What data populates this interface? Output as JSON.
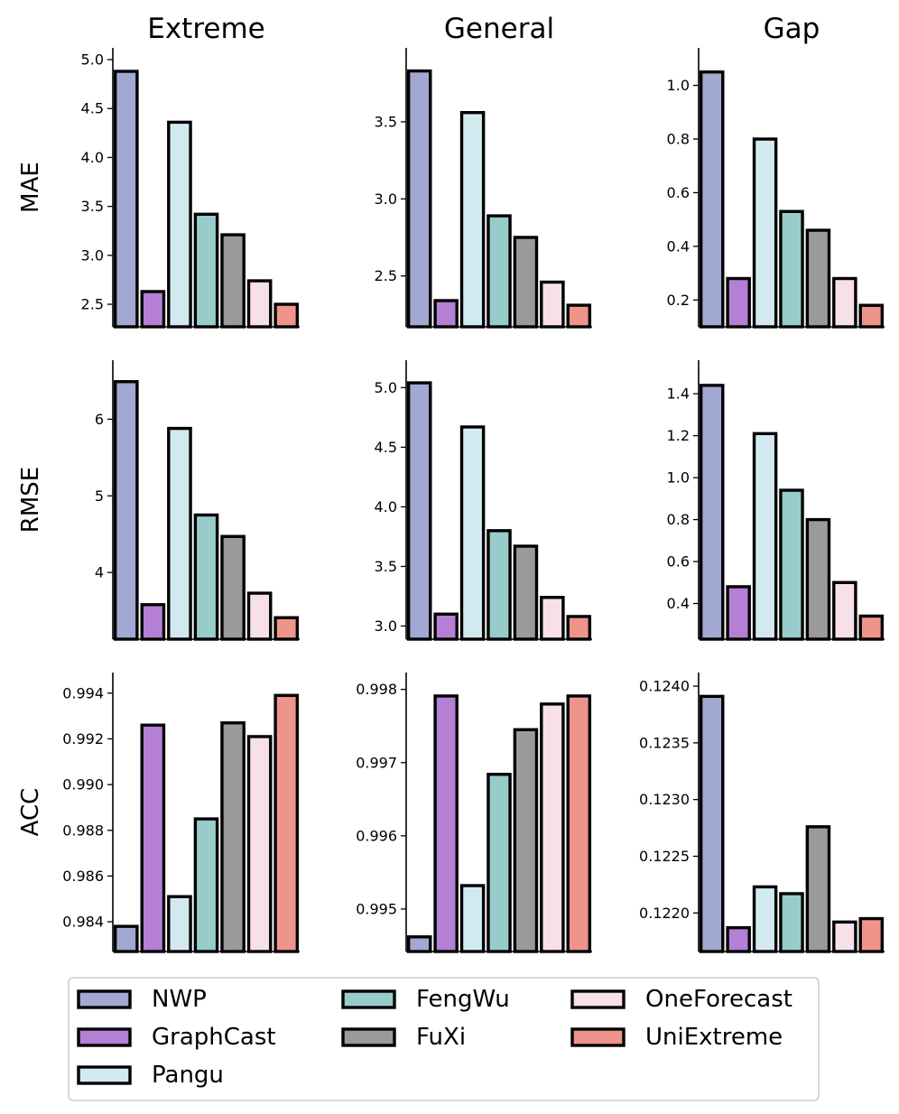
{
  "colors": {
    "NWP": "#a1a9d2",
    "GraphCast": "#b47fd4",
    "Pangu": "#d3e9f0",
    "FengWu": "#98cccb",
    "FuXi": "#9a9a9a",
    "OneForecast": "#f8e0ea",
    "UniExtreme": "#ef948a"
  },
  "legend": {
    "items": [
      "NWP",
      "GraphCast",
      "Pangu",
      "FengWu",
      "FuXi",
      "OneForecast",
      "UniExtreme"
    ]
  },
  "chart_data": [
    {
      "type": "bar",
      "row": "MAE",
      "col": "Extreme",
      "title": "Extreme",
      "ylabel": "MAE",
      "categories": [
        "NWP",
        "GraphCast",
        "Pangu",
        "FengWu",
        "FuXi",
        "OneForecast",
        "UniExtreme"
      ],
      "values": [
        4.88,
        2.63,
        4.36,
        3.42,
        3.21,
        2.74,
        2.5
      ],
      "ylim": [
        2.27,
        5.12
      ],
      "ticks": [
        "2.5",
        "3.0",
        "3.5",
        "4.0",
        "4.5",
        "5.0"
      ]
    },
    {
      "type": "bar",
      "row": "MAE",
      "col": "General",
      "title": "General",
      "ylabel": "",
      "categories": [
        "NWP",
        "GraphCast",
        "Pangu",
        "FengWu",
        "FuXi",
        "OneForecast",
        "UniExtreme"
      ],
      "values": [
        3.83,
        2.34,
        3.56,
        2.89,
        2.75,
        2.46,
        2.31
      ],
      "ylim": [
        2.17,
        3.98
      ],
      "ticks": [
        "2.5",
        "3.0",
        "3.5"
      ]
    },
    {
      "type": "bar",
      "row": "MAE",
      "col": "Gap",
      "title": "Gap",
      "ylabel": "",
      "categories": [
        "NWP",
        "GraphCast",
        "Pangu",
        "FengWu",
        "FuXi",
        "OneForecast",
        "UniExtreme"
      ],
      "values": [
        1.05,
        0.28,
        0.8,
        0.53,
        0.46,
        0.28,
        0.18
      ],
      "ylim": [
        0.1,
        1.14
      ],
      "ticks": [
        "0.2",
        "0.4",
        "0.6",
        "0.8",
        "1.0"
      ]
    },
    {
      "type": "bar",
      "row": "RMSE",
      "col": "Extreme",
      "title": "",
      "ylabel": "RMSE",
      "categories": [
        "NWP",
        "GraphCast",
        "Pangu",
        "FengWu",
        "FuXi",
        "OneForecast",
        "UniExtreme"
      ],
      "values": [
        6.49,
        3.58,
        5.88,
        4.75,
        4.47,
        3.73,
        3.41
      ],
      "ylim": [
        3.13,
        6.77
      ],
      "ticks": [
        "4",
        "5",
        "6"
      ]
    },
    {
      "type": "bar",
      "row": "RMSE",
      "col": "General",
      "title": "",
      "ylabel": "",
      "categories": [
        "NWP",
        "GraphCast",
        "Pangu",
        "FengWu",
        "FuXi",
        "OneForecast",
        "UniExtreme"
      ],
      "values": [
        5.04,
        3.1,
        4.67,
        3.8,
        3.67,
        3.24,
        3.08
      ],
      "ylim": [
        2.89,
        5.23
      ],
      "ticks": [
        "3.0",
        "3.5",
        "4.0",
        "4.5",
        "5.0"
      ]
    },
    {
      "type": "bar",
      "row": "RMSE",
      "col": "Gap",
      "title": "",
      "ylabel": "",
      "categories": [
        "NWP",
        "GraphCast",
        "Pangu",
        "FengWu",
        "FuXi",
        "OneForecast",
        "UniExtreme"
      ],
      "values": [
        1.44,
        0.48,
        1.21,
        0.94,
        0.8,
        0.5,
        0.34
      ],
      "ylim": [
        0.23,
        1.56
      ],
      "ticks": [
        "0.4",
        "0.6",
        "0.8",
        "1.0",
        "1.2",
        "1.4"
      ]
    },
    {
      "type": "bar",
      "row": "ACC",
      "col": "Extreme",
      "title": "",
      "ylabel": "ACC",
      "categories": [
        "NWP",
        "GraphCast",
        "Pangu",
        "FengWu",
        "FuXi",
        "OneForecast",
        "UniExtreme"
      ],
      "values": [
        0.9838,
        0.9926,
        0.9851,
        0.9885,
        0.9927,
        0.9921,
        0.9939
      ],
      "ylim": [
        0.9827,
        0.9949
      ],
      "ticks": [
        "0.984",
        "0.986",
        "0.988",
        "0.990",
        "0.992",
        "0.994"
      ]
    },
    {
      "type": "bar",
      "row": "ACC",
      "col": "General",
      "title": "",
      "ylabel": "",
      "categories": [
        "NWP",
        "GraphCast",
        "Pangu",
        "FengWu",
        "FuXi",
        "OneForecast",
        "UniExtreme"
      ],
      "values": [
        0.99462,
        0.99791,
        0.99532,
        0.99684,
        0.99745,
        0.9978,
        0.99791
      ],
      "ylim": [
        0.99442,
        0.99823
      ],
      "ticks": [
        "0.995",
        "0.996",
        "0.997",
        "0.998"
      ]
    },
    {
      "type": "bar",
      "row": "ACC",
      "col": "Gap",
      "title": "",
      "ylabel": "",
      "categories": [
        "NWP",
        "GraphCast",
        "Pangu",
        "FengWu",
        "FuXi",
        "OneForecast",
        "UniExtreme"
      ],
      "values": [
        0.12391,
        0.12187,
        0.12223,
        0.12217,
        0.12276,
        0.12192,
        0.12195
      ],
      "ylim": [
        0.12166,
        0.12412
      ],
      "ticks": [
        "0.1220",
        "0.1225",
        "0.1230",
        "0.1235",
        "0.1240"
      ]
    }
  ]
}
